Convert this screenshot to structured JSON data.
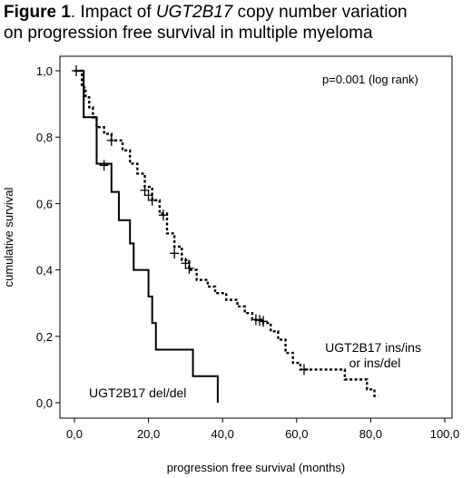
{
  "figure": {
    "label": "Figure 1",
    "title_pre": ". Impact of ",
    "title_gene": "UGT2B17",
    "title_post_line1": " copy number variation",
    "title_line2": "on progression free survival in multiple myeloma"
  },
  "chart_data": {
    "type": "line",
    "subtype": "kaplan-meier",
    "xlabel": "progression free survival (months)",
    "ylabel": "cumulative survival",
    "xlim": [
      0,
      100
    ],
    "ylim": [
      0,
      1
    ],
    "xticks": [
      "0,0",
      "20,0",
      "40,0",
      "60,0",
      "80,0",
      "100,0"
    ],
    "yticks": [
      "0,0",
      "0,2",
      "0,4",
      "0,6",
      "0,8",
      "1,0"
    ],
    "annotation": "p=0.001 (log rank)",
    "grid": false,
    "legend": "none",
    "series": [
      {
        "name": "UGT2B17 del/del",
        "style": "solid",
        "label_position": "below-left",
        "steps": [
          [
            0,
            1.0
          ],
          [
            2.5,
            0.86
          ],
          [
            6,
            0.72
          ],
          [
            10,
            0.635
          ],
          [
            12,
            0.55
          ],
          [
            15,
            0.48
          ],
          [
            16,
            0.4
          ],
          [
            20,
            0.32
          ],
          [
            21,
            0.24
          ],
          [
            22,
            0.16
          ],
          [
            32,
            0.08
          ],
          [
            38.7,
            0.0
          ]
        ],
        "end_x": 38.7,
        "censored": [
          [
            8,
            0.715
          ]
        ]
      },
      {
        "name": "UGT2B17 ins/ins or ins/del",
        "label_lines": [
          "UGT2B17 ins/ins",
          "or ins/del"
        ],
        "style": "dotted",
        "label_position": "right",
        "steps": [
          [
            0,
            1.0
          ],
          [
            2,
            0.95
          ],
          [
            3,
            0.92
          ],
          [
            4,
            0.89
          ],
          [
            5,
            0.86
          ],
          [
            6,
            0.83
          ],
          [
            8,
            0.81
          ],
          [
            10,
            0.79
          ],
          [
            13,
            0.76
          ],
          [
            15,
            0.72
          ],
          [
            17,
            0.69
          ],
          [
            19,
            0.65
          ],
          [
            21,
            0.61
          ],
          [
            23,
            0.57
          ],
          [
            25,
            0.51
          ],
          [
            27,
            0.47
          ],
          [
            29,
            0.43
          ],
          [
            31,
            0.4
          ],
          [
            33,
            0.37
          ],
          [
            36,
            0.35
          ],
          [
            38,
            0.33
          ],
          [
            41,
            0.31
          ],
          [
            44,
            0.29
          ],
          [
            46,
            0.27
          ],
          [
            48,
            0.25
          ],
          [
            51,
            0.24
          ],
          [
            53,
            0.215
          ],
          [
            55,
            0.19
          ],
          [
            57,
            0.15
          ],
          [
            59,
            0.12
          ],
          [
            61,
            0.1
          ],
          [
            73,
            0.07
          ],
          [
            79,
            0.04
          ],
          [
            81,
            0.02
          ]
        ],
        "end_x": 82,
        "censored": [
          [
            0.5,
            1.0
          ],
          [
            10,
            0.79
          ],
          [
            19,
            0.64
          ],
          [
            20,
            0.625
          ],
          [
            21,
            0.61
          ],
          [
            24,
            0.565
          ],
          [
            27,
            0.45
          ],
          [
            30,
            0.42
          ],
          [
            31,
            0.405
          ],
          [
            49,
            0.25
          ],
          [
            50,
            0.248
          ],
          [
            51,
            0.245
          ],
          [
            62,
            0.1
          ]
        ]
      }
    ]
  }
}
